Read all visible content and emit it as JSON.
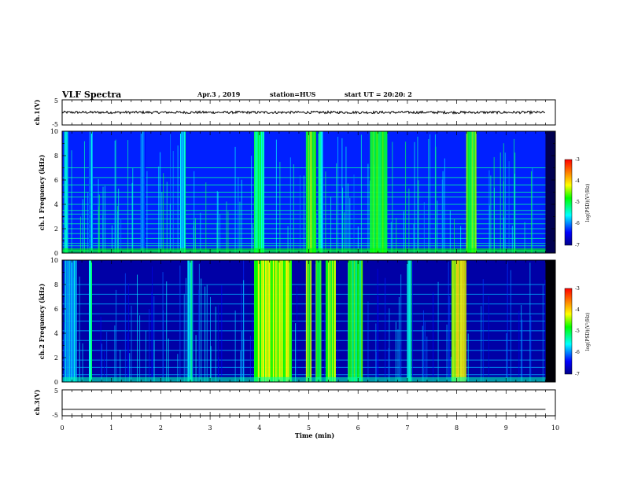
{
  "header": {
    "title": "VLF Spectra",
    "date": "Apr.3 , 2019",
    "station": "station=HUS",
    "start": "start UT = 20:20: 2"
  },
  "chart_data": [
    {
      "type": "line",
      "name": "ch1-waveform",
      "ylabel": "ch.1(V)",
      "ylim": [
        -5,
        5
      ],
      "yticks": [
        "5",
        "-5"
      ],
      "xlim": [
        0,
        10
      ],
      "x": [
        0,
        1,
        2,
        3,
        4,
        5,
        6,
        7,
        8,
        9,
        9.8
      ],
      "y": [
        0,
        0,
        0,
        0,
        0,
        0,
        0,
        0,
        0,
        0,
        0
      ]
    },
    {
      "type": "heatmap",
      "name": "ch1-spectrogram",
      "ylabel": "ch.1 Frequency (kHz)",
      "ylim": [
        0,
        10
      ],
      "yticks": [
        "0",
        "2",
        "4",
        "6",
        "8",
        "10"
      ],
      "xlim": [
        0,
        10
      ],
      "data_end_min": 9.8,
      "horizontal_lines_khz": [
        0.2,
        0.6,
        0.8,
        1.2,
        1.6,
        2.0,
        2.4,
        2.8,
        3.2,
        3.5,
        4.0,
        4.6,
        5.0,
        5.6,
        6.2,
        7.0
      ],
      "bursts": [
        {
          "start": 0.05,
          "end": 0.12,
          "level": -5.6
        },
        {
          "start": 0.55,
          "end": 0.62,
          "level": -5.8
        },
        {
          "start": 1.6,
          "end": 1.68,
          "level": -6.0
        },
        {
          "start": 2.4,
          "end": 2.5,
          "level": -5.6
        },
        {
          "start": 3.9,
          "end": 4.1,
          "level": -5.2
        },
        {
          "start": 4.95,
          "end": 5.15,
          "level": -4.8
        },
        {
          "start": 5.2,
          "end": 5.28,
          "level": -5.4
        },
        {
          "start": 6.25,
          "end": 6.6,
          "level": -4.9
        },
        {
          "start": 8.2,
          "end": 8.4,
          "level": -4.8
        }
      ],
      "colorbar": {
        "label": "log(PSD)(V²/Hz)",
        "range": [
          -7,
          -3
        ],
        "ticks": [
          "-3",
          "-4",
          "-5",
          "-6",
          "-7"
        ]
      }
    },
    {
      "type": "heatmap",
      "name": "ch2-spectrogram",
      "ylabel": "ch.2 Frequency (kHz)",
      "ylim": [
        0,
        10
      ],
      "yticks": [
        "0",
        "2",
        "4",
        "6",
        "8",
        "10"
      ],
      "xlim": [
        0,
        10
      ],
      "data_end_min": 9.8,
      "horizontal_lines_khz": [
        0.6,
        1.2,
        1.8,
        2.6,
        3.4,
        4.2,
        5.0,
        5.6,
        6.4,
        7.2,
        8.0
      ],
      "bursts": [
        {
          "start": 0.05,
          "end": 0.3,
          "level": -5.8
        },
        {
          "start": 0.55,
          "end": 0.6,
          "level": -5.4
        },
        {
          "start": 2.55,
          "end": 2.65,
          "level": -5.6
        },
        {
          "start": 3.9,
          "end": 4.65,
          "level": -4.5
        },
        {
          "start": 4.95,
          "end": 5.05,
          "level": -4.6
        },
        {
          "start": 5.15,
          "end": 5.25,
          "level": -4.8
        },
        {
          "start": 5.35,
          "end": 5.55,
          "level": -4.6
        },
        {
          "start": 5.8,
          "end": 6.1,
          "level": -4.9
        },
        {
          "start": 7.0,
          "end": 7.08,
          "level": -5.4
        },
        {
          "start": 7.9,
          "end": 8.2,
          "level": -4.3
        }
      ],
      "colorbar": {
        "label": "log(PSD)(V²/Hz)",
        "range": [
          -7,
          -3
        ],
        "ticks": [
          "-3",
          "-4",
          "-5",
          "-6",
          "-7"
        ]
      }
    },
    {
      "type": "line",
      "name": "ch3-waveform",
      "ylabel": "ch.3(V)",
      "ylim": [
        -5,
        5
      ],
      "yticks": [
        "5",
        "-5"
      ],
      "xlim": [
        0,
        10
      ],
      "x": [
        0,
        9.8
      ],
      "y": [
        -2.5,
        -2.5
      ]
    }
  ],
  "xaxis": {
    "label": "Time (min)",
    "ticks": [
      "0",
      "1",
      "2",
      "3",
      "4",
      "5",
      "6",
      "7",
      "8",
      "9",
      "10"
    ]
  }
}
